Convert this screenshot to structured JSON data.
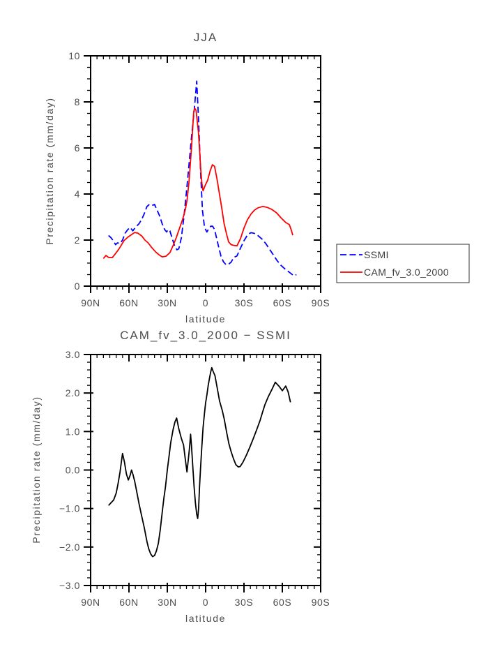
{
  "figure": {
    "background": "#ffffff",
    "axis_color": "#000000",
    "text_color": "#4d4d4d"
  },
  "chart_data": [
    {
      "type": "line",
      "title": "JJA",
      "xlabel": "latitude",
      "ylabel": "Precipitation rate (mm/day)",
      "xlim": [
        90,
        -90
      ],
      "ylim": [
        0,
        10
      ],
      "grid": false,
      "x_ticks": {
        "values": [
          90,
          60,
          30,
          0,
          -30,
          -60,
          -90
        ],
        "labels": [
          "90N",
          "60N",
          "30N",
          "0",
          "30S",
          "60S",
          "90S"
        ],
        "minor_step": 5
      },
      "y_ticks": {
        "values": [
          0,
          2,
          4,
          6,
          8,
          10
        ],
        "labels": [
          "0",
          "2",
          "4",
          "6",
          "8",
          "10"
        ],
        "minor_step": 0.5
      },
      "legend": {
        "position": "outside-right",
        "entries": [
          "SSMI",
          "CAM_fv_3.0_2000"
        ]
      },
      "series": [
        {
          "name": "SSMI",
          "color": "#0000ff",
          "style": "dashed",
          "points": [
            [
              76,
              2.2
            ],
            [
              74,
              2.1
            ],
            [
              72,
              1.95
            ],
            [
              70.5,
              1.8
            ],
            [
              69,
              1.88
            ],
            [
              67,
              1.85
            ],
            [
              65,
              2.0
            ],
            [
              63,
              2.3
            ],
            [
              61,
              2.45
            ],
            [
              59,
              2.55
            ],
            [
              57,
              2.4
            ],
            [
              55,
              2.55
            ],
            [
              52,
              2.72
            ],
            [
              50,
              2.9
            ],
            [
              48,
              3.15
            ],
            [
              46,
              3.45
            ],
            [
              44,
              3.55
            ],
            [
              42,
              3.5
            ],
            [
              40,
              3.55
            ],
            [
              38,
              3.3
            ],
            [
              36,
              3.05
            ],
            [
              34,
              2.7
            ],
            [
              32,
              2.45
            ],
            [
              30.5,
              2.35
            ],
            [
              29.5,
              2.45
            ],
            [
              28,
              2.4
            ],
            [
              26,
              2.05
            ],
            [
              24,
              1.7
            ],
            [
              22.5,
              1.58
            ],
            [
              21,
              1.62
            ],
            [
              19,
              2.1
            ],
            [
              17,
              3.0
            ],
            [
              15,
              4.1
            ],
            [
              13,
              5.3
            ],
            [
              11,
              6.5
            ],
            [
              9,
              7.6
            ],
            [
              7,
              8.9
            ],
            [
              5.5,
              7.2
            ],
            [
              4,
              5.0
            ],
            [
              2.5,
              3.3
            ],
            [
              1,
              2.6
            ],
            [
              0,
              2.45
            ],
            [
              -1,
              2.35
            ],
            [
              -2.5,
              2.5
            ],
            [
              -4,
              2.6
            ],
            [
              -5.5,
              2.6
            ],
            [
              -7,
              2.45
            ],
            [
              -8.5,
              2.1
            ],
            [
              -10,
              1.75
            ],
            [
              -12,
              1.3
            ],
            [
              -14,
              1.05
            ],
            [
              -16,
              0.93
            ],
            [
              -18,
              0.95
            ],
            [
              -20,
              1.05
            ],
            [
              -22,
              1.25
            ],
            [
              -24.5,
              1.31
            ],
            [
              -27,
              1.62
            ],
            [
              -30,
              1.97
            ],
            [
              -33,
              2.25
            ],
            [
              -35.5,
              2.32
            ],
            [
              -38,
              2.29
            ],
            [
              -41,
              2.19
            ],
            [
              -44,
              2.05
            ],
            [
              -47,
              1.85
            ],
            [
              -50,
              1.6
            ],
            [
              -53,
              1.35
            ],
            [
              -56,
              1.1
            ],
            [
              -59,
              0.9
            ],
            [
              -62,
              0.75
            ],
            [
              -65.5,
              0.6
            ],
            [
              -69,
              0.45
            ],
            [
              -71,
              0.5
            ]
          ]
        },
        {
          "name": "CAM_fv_3.0_2000",
          "color": "#ff0000",
          "style": "solid",
          "points": [
            [
              80,
              1.2
            ],
            [
              78,
              1.33
            ],
            [
              76,
              1.25
            ],
            [
              73,
              1.24
            ],
            [
              70,
              1.45
            ],
            [
              68,
              1.6
            ],
            [
              66,
              1.78
            ],
            [
              64,
              1.97
            ],
            [
              61,
              2.12
            ],
            [
              58,
              2.24
            ],
            [
              55.5,
              2.33
            ],
            [
              53,
              2.3
            ],
            [
              50,
              2.18
            ],
            [
              47.5,
              2.0
            ],
            [
              45,
              1.88
            ],
            [
              42,
              1.66
            ],
            [
              39,
              1.48
            ],
            [
              36.5,
              1.36
            ],
            [
              34,
              1.27
            ],
            [
              31,
              1.3
            ],
            [
              28,
              1.45
            ],
            [
              25.5,
              1.76
            ],
            [
              23,
              2.1
            ],
            [
              20.5,
              2.5
            ],
            [
              18,
              2.9
            ],
            [
              16,
              3.3
            ],
            [
              14.5,
              3.75
            ],
            [
              13,
              4.55
            ],
            [
              11,
              6.05
            ],
            [
              9.3,
              7.58
            ],
            [
              8.5,
              7.72
            ],
            [
              7.5,
              7.63
            ],
            [
              5.6,
              6.67
            ],
            [
              4.7,
              5.86
            ],
            [
              3.8,
              5.05
            ],
            [
              2.9,
              4.44
            ],
            [
              2,
              4.14
            ],
            [
              0.2,
              4.39
            ],
            [
              -1.6,
              4.6
            ],
            [
              -3.5,
              5.0
            ],
            [
              -5.3,
              5.27
            ],
            [
              -7,
              5.2
            ],
            [
              -8.9,
              4.65
            ],
            [
              -10.7,
              4.04
            ],
            [
              -12.5,
              3.43
            ],
            [
              -14.4,
              2.73
            ],
            [
              -16.4,
              2.25
            ],
            [
              -18,
              1.92
            ],
            [
              -20,
              1.8
            ],
            [
              -22,
              1.77
            ],
            [
              -24.5,
              1.75
            ],
            [
              -27.3,
              2.07
            ],
            [
              -30,
              2.52
            ],
            [
              -32.7,
              2.88
            ],
            [
              -35.5,
              3.13
            ],
            [
              -38.2,
              3.3
            ],
            [
              -41,
              3.4
            ],
            [
              -44.7,
              3.46
            ],
            [
              -48,
              3.42
            ],
            [
              -51.8,
              3.33
            ],
            [
              -55.6,
              3.18
            ],
            [
              -58.9,
              2.97
            ],
            [
              -62.7,
              2.76
            ],
            [
              -65.5,
              2.67
            ],
            [
              -67.1,
              2.42
            ],
            [
              -68.2,
              2.21
            ]
          ]
        }
      ]
    },
    {
      "type": "line",
      "title": "CAM_fv_3.0_2000 − SSMI",
      "xlabel": "latitude",
      "ylabel": "Precipitation rate (mm/day)",
      "xlim": [
        90,
        -90
      ],
      "ylim": [
        -3,
        3
      ],
      "grid": false,
      "x_ticks": {
        "values": [
          90,
          60,
          30,
          0,
          -30,
          -60,
          -90
        ],
        "labels": [
          "90N",
          "60N",
          "30N",
          "0",
          "30S",
          "60S",
          "90S"
        ],
        "minor_step": 5
      },
      "y_ticks": {
        "values": [
          -3,
          -2,
          -1,
          0,
          1,
          2,
          3
        ],
        "labels": [
          "−3.0",
          "−2.0",
          "−1.0",
          "0.0",
          "1.0",
          "2.0",
          "3.0"
        ],
        "minor_step": 0.2
      },
      "series": [
        {
          "name": "CAM_fv_3.0_2000 - SSMI",
          "color": "#000000",
          "style": "solid",
          "points": [
            [
              76,
              -0.92
            ],
            [
              74,
              -0.85
            ],
            [
              72,
              -0.78
            ],
            [
              70,
              -0.6
            ],
            [
              68.5,
              -0.35
            ],
            [
              67,
              -0.05
            ],
            [
              65.8,
              0.25
            ],
            [
              65,
              0.43
            ],
            [
              63.5,
              0.2
            ],
            [
              62,
              -0.1
            ],
            [
              60.5,
              -0.26
            ],
            [
              59,
              -0.13
            ],
            [
              58,
              0.0
            ],
            [
              57,
              -0.1
            ],
            [
              55.5,
              -0.3
            ],
            [
              54,
              -0.55
            ],
            [
              52,
              -0.9
            ],
            [
              50,
              -1.2
            ],
            [
              48,
              -1.5
            ],
            [
              46,
              -1.85
            ],
            [
              44.5,
              -2.05
            ],
            [
              43,
              -2.18
            ],
            [
              41.5,
              -2.25
            ],
            [
              40,
              -2.22
            ],
            [
              38.5,
              -2.1
            ],
            [
              37,
              -1.9
            ],
            [
              35.5,
              -1.55
            ],
            [
              34,
              -1.1
            ],
            [
              32.7,
              -0.73
            ],
            [
              31.5,
              -0.45
            ],
            [
              30,
              0.0
            ],
            [
              28.5,
              0.4
            ],
            [
              27.3,
              0.71
            ],
            [
              25.5,
              1.05
            ],
            [
              24,
              1.25
            ],
            [
              22.7,
              1.35
            ],
            [
              21,
              1.07
            ],
            [
              19,
              0.82
            ],
            [
              17.3,
              0.65
            ],
            [
              16,
              0.3
            ],
            [
              14.6,
              -0.05
            ],
            [
              13.5,
              0.3
            ],
            [
              12.5,
              0.62
            ],
            [
              11.8,
              0.93
            ],
            [
              11,
              0.6
            ],
            [
              10,
              0.05
            ],
            [
              9,
              -0.45
            ],
            [
              8,
              -0.85
            ],
            [
              7,
              -1.15
            ],
            [
              6.2,
              -1.26
            ],
            [
              5.5,
              -1.0
            ],
            [
              4.8,
              -0.45
            ],
            [
              4,
              0.05
            ],
            [
              3,
              0.6
            ],
            [
              2,
              1.1
            ],
            [
              1,
              1.45
            ],
            [
              0,
              1.75
            ],
            [
              -1,
              1.95
            ],
            [
              -2,
              2.2
            ],
            [
              -3,
              2.38
            ],
            [
              -4,
              2.55
            ],
            [
              -4.8,
              2.66
            ],
            [
              -6,
              2.55
            ],
            [
              -7.3,
              2.45
            ],
            [
              -9.1,
              2.12
            ],
            [
              -10.9,
              1.79
            ],
            [
              -13,
              1.55
            ],
            [
              -14.6,
              1.31
            ],
            [
              -16.4,
              0.98
            ],
            [
              -18.2,
              0.68
            ],
            [
              -20,
              0.47
            ],
            [
              -21.8,
              0.29
            ],
            [
              -23.6,
              0.14
            ],
            [
              -25.5,
              0.08
            ],
            [
              -27,
              0.09
            ],
            [
              -29.1,
              0.2
            ],
            [
              -31.8,
              0.38
            ],
            [
              -34.5,
              0.59
            ],
            [
              -37.3,
              0.82
            ],
            [
              -40,
              1.05
            ],
            [
              -42.7,
              1.3
            ],
            [
              -44.5,
              1.5
            ],
            [
              -46.4,
              1.7
            ],
            [
              -49.1,
              1.91
            ],
            [
              -51.8,
              2.09
            ],
            [
              -54.5,
              2.28
            ],
            [
              -57.3,
              2.18
            ],
            [
              -60,
              2.06
            ],
            [
              -62.7,
              2.18
            ],
            [
              -64.5,
              2.03
            ],
            [
              -66.4,
              1.76
            ]
          ]
        }
      ]
    }
  ]
}
